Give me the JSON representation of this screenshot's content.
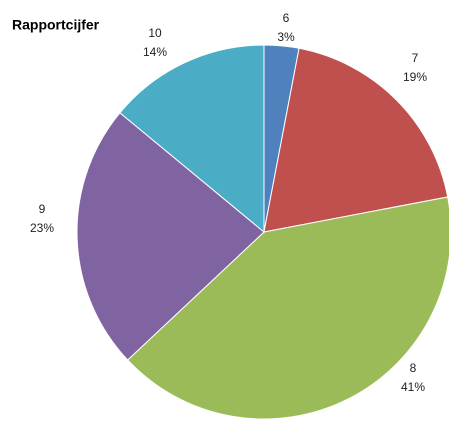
{
  "chart_data": {
    "type": "pie",
    "title": "Rapportcijfer",
    "categories": [
      "6",
      "7",
      "8",
      "9",
      "10"
    ],
    "values": [
      3,
      19,
      41,
      23,
      14
    ],
    "value_labels": [
      "3%",
      "19%",
      "41%",
      "23%",
      "14%"
    ],
    "colors": [
      "#4f81bd",
      "#c0504d",
      "#9bbb59",
      "#8064a2",
      "#4bacc6"
    ]
  }
}
